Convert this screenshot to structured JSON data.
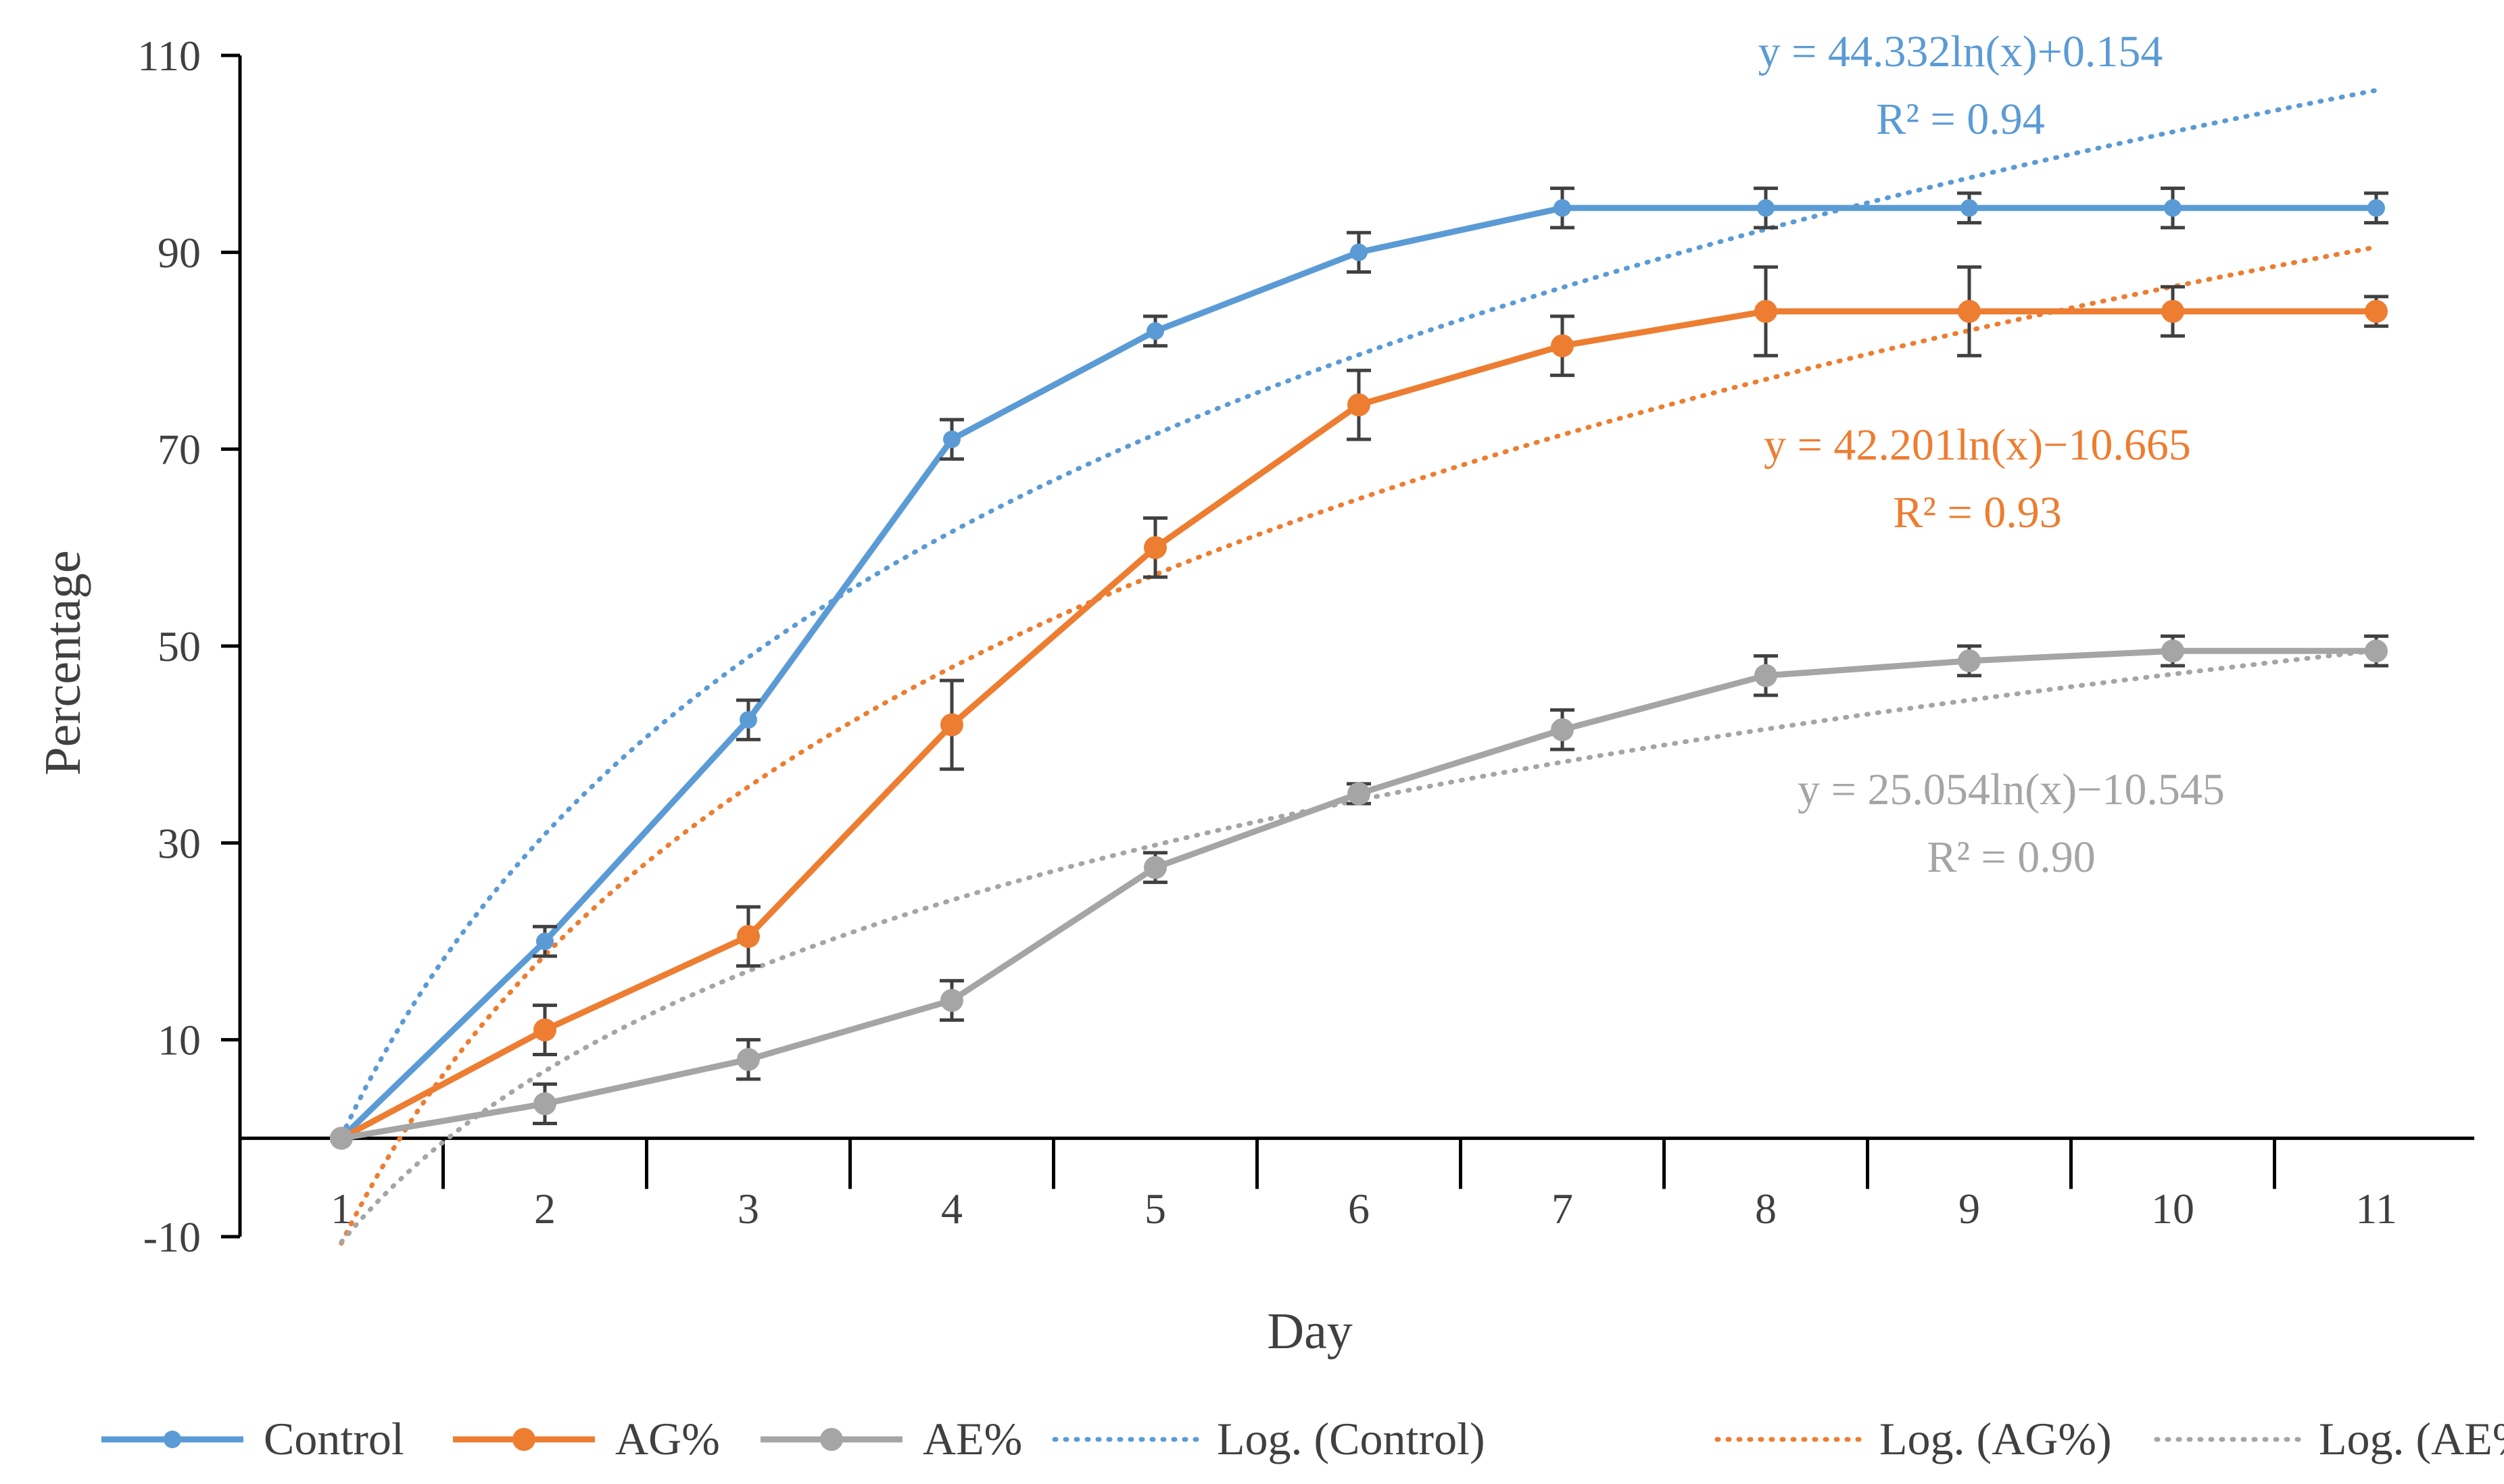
{
  "chart_data": {
    "type": "line",
    "xlabel": "Day",
    "ylabel": "Percentage",
    "x": [
      1,
      2,
      3,
      4,
      5,
      6,
      7,
      8,
      9,
      10,
      11
    ],
    "x_ticks": [
      "1",
      "2",
      "3",
      "4",
      "5",
      "6",
      "7",
      "8",
      "9",
      "10",
      "11"
    ],
    "ylim": [
      -10,
      110
    ],
    "y_ticks": [
      "-10",
      "10",
      "30",
      "50",
      "70",
      "90",
      "110"
    ],
    "grid": false,
    "legend_position": "bottom",
    "series": [
      {
        "name": "Control",
        "color": "#5B9BD5",
        "values": [
          0,
          20,
          42.5,
          71,
          82,
          90,
          94.5,
          94.5,
          94.5,
          94.5,
          94.5
        ],
        "errors": [
          0.5,
          1.5,
          2,
          2,
          1.5,
          2,
          2,
          2,
          1.5,
          2,
          1.5
        ]
      },
      {
        "name": "AG%",
        "color": "#ED7D31",
        "values": [
          0,
          11,
          20.5,
          42,
          60,
          74.5,
          80.5,
          84,
          84,
          84,
          84
        ],
        "errors": [
          0.5,
          2.5,
          3,
          4.5,
          3,
          3.5,
          3,
          4.5,
          4.5,
          2.5,
          1.5
        ]
      },
      {
        "name": "AE%",
        "color": "#A5A5A5",
        "values": [
          0,
          3.5,
          8,
          14,
          27.5,
          35,
          41.5,
          47,
          48.5,
          49.5,
          49.5
        ],
        "errors": [
          0.5,
          2,
          2,
          2,
          1.5,
          1,
          2,
          2,
          1.5,
          1.5,
          1.5
        ]
      }
    ],
    "trendlines": [
      {
        "name": "Log. (Control)",
        "color": "#5B9BD5",
        "type": "log",
        "a": 44.332,
        "b": 0.154,
        "x_range": [
          1,
          11
        ],
        "equation": "y = 44.332ln(x)+0.154",
        "r2": "R² = 0.94"
      },
      {
        "name": "Log. (AG%)",
        "color": "#ED7D31",
        "type": "log",
        "a": 42.201,
        "b": -10.665,
        "x_range": [
          1,
          11
        ],
        "equation": "y = 42.201ln(x)−10.665",
        "r2": "R² = 0.93"
      },
      {
        "name": "Log. (AE%)",
        "color": "#A5A5A5",
        "type": "log",
        "a": 25.054,
        "b": -10.545,
        "x_range": [
          1,
          11
        ],
        "equation": "y = 25.054ln(x)−10.545",
        "r2": "R² = 0.90"
      }
    ]
  }
}
